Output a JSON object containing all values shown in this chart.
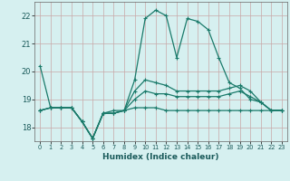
{
  "title": "",
  "xlabel": "Humidex (Indice chaleur)",
  "bg_color": "#d6f0f0",
  "grid_color_h": "#c8a8a8",
  "grid_color_v": "#c8a8a8",
  "line_color": "#1a7a6a",
  "xlim": [
    -0.5,
    23.5
  ],
  "ylim": [
    17.5,
    22.5
  ],
  "yticks": [
    18,
    19,
    20,
    21,
    22
  ],
  "xticks": [
    0,
    1,
    2,
    3,
    4,
    5,
    6,
    7,
    8,
    9,
    10,
    11,
    12,
    13,
    14,
    15,
    16,
    17,
    18,
    19,
    20,
    21,
    22,
    23
  ],
  "lines": [
    [
      20.2,
      18.7,
      18.7,
      18.7,
      18.2,
      17.6,
      18.5,
      18.6,
      18.6,
      19.7,
      21.9,
      22.2,
      22.0,
      20.5,
      21.9,
      21.8,
      21.5,
      20.5,
      19.6,
      19.4,
      19.0,
      18.9,
      18.6,
      18.6
    ],
    [
      18.6,
      18.7,
      18.7,
      18.7,
      18.2,
      17.6,
      18.5,
      18.5,
      18.6,
      19.3,
      19.7,
      19.6,
      19.5,
      19.3,
      19.3,
      19.3,
      19.3,
      19.3,
      19.4,
      19.5,
      19.3,
      18.9,
      18.6,
      18.6
    ],
    [
      18.6,
      18.7,
      18.7,
      18.7,
      18.2,
      17.6,
      18.5,
      18.5,
      18.6,
      19.0,
      19.3,
      19.2,
      19.2,
      19.1,
      19.1,
      19.1,
      19.1,
      19.1,
      19.2,
      19.3,
      19.1,
      18.9,
      18.6,
      18.6
    ],
    [
      18.6,
      18.7,
      18.7,
      18.7,
      18.2,
      17.6,
      18.5,
      18.5,
      18.6,
      18.7,
      18.7,
      18.7,
      18.6,
      18.6,
      18.6,
      18.6,
      18.6,
      18.6,
      18.6,
      18.6,
      18.6,
      18.6,
      18.6,
      18.6
    ]
  ]
}
